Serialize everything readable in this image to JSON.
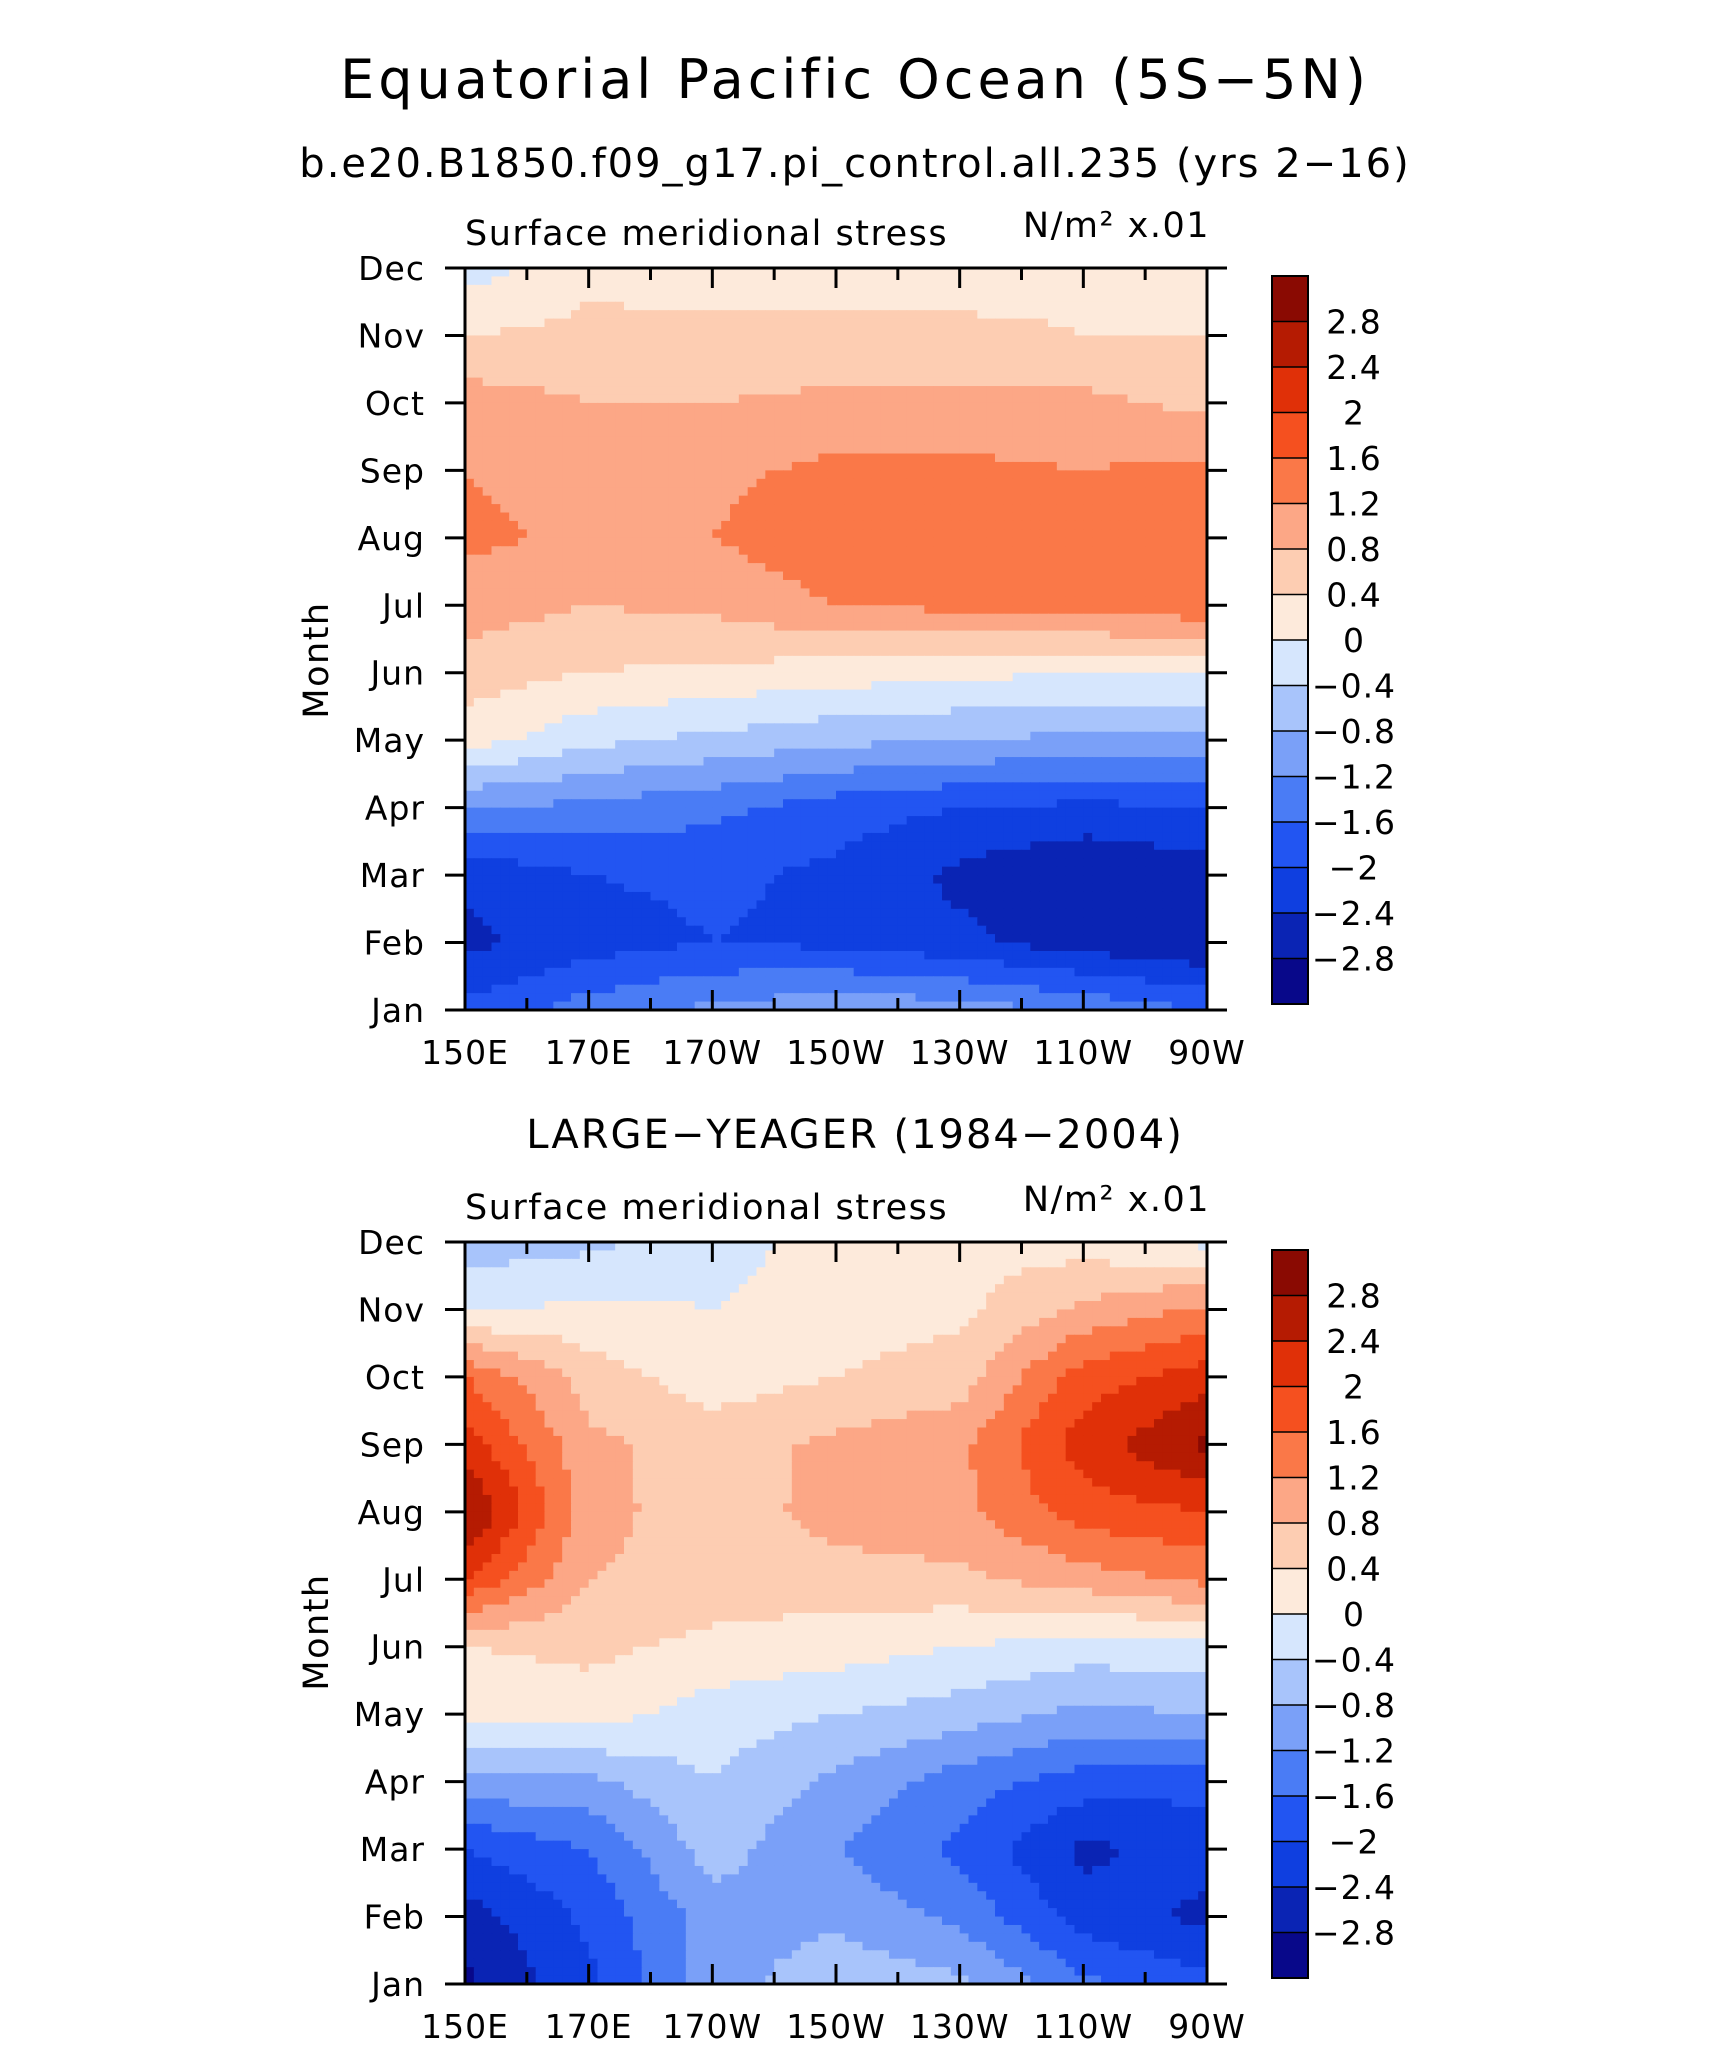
{
  "figure": {
    "title": "Equatorial Pacific Ocean (5S−5N)"
  },
  "palette": [
    "#08088a",
    "#0a24b4",
    "#0f3fe0",
    "#2255f2",
    "#4a7cf5",
    "#7aa0f8",
    "#a8c4fb",
    "#d6e6fd",
    "#fdeadb",
    "#fdcdb2",
    "#fca786",
    "#fa7848",
    "#f5501f",
    "#e03008",
    "#b51b02",
    "#8a0a02"
  ],
  "chart_data": [
    {
      "type": "heatmap",
      "subtitle": "b.e20.B1850.f09_g17.pi_control.all.235 (yrs 2−16)",
      "left_label": "Surface meridional stress",
      "right_label": "N/m² x.01",
      "ylabel": "Month",
      "xlabel": "",
      "x": [
        "150E",
        "170E",
        "170W",
        "150W",
        "130W",
        "110W",
        "90W"
      ],
      "y": [
        "Jan",
        "Feb",
        "Mar",
        "Apr",
        "May",
        "Jun",
        "Jul",
        "Aug",
        "Sep",
        "Oct",
        "Nov",
        "Dec"
      ],
      "colorbar_levels": [
        "2.8",
        "2.4",
        "2",
        "1.6",
        "1.2",
        "0.8",
        "0.4",
        "0",
        "−0.4",
        "−0.8",
        "−1.2",
        "−1.6",
        "−2",
        "−2.4",
        "−2.8"
      ],
      "values": [
        [
          -1.9,
          -1.4,
          -1.1,
          -0.9,
          -1.0,
          -1.3,
          -1.6
        ],
        [
          -2.5,
          -2.2,
          -2.0,
          -2.1,
          -2.3,
          -2.6,
          -2.8
        ],
        [
          -2.3,
          -2.0,
          -1.9,
          -2.1,
          -2.5,
          -2.8,
          -2.6
        ],
        [
          -1.2,
          -1.3,
          -1.5,
          -1.8,
          -2.0,
          -2.1,
          -2.0
        ],
        [
          0.2,
          -0.3,
          -0.5,
          -0.7,
          -0.8,
          -0.9,
          -0.9
        ],
        [
          0.6,
          0.4,
          0.3,
          0.2,
          0.1,
          0.0,
          0.0
        ],
        [
          1.0,
          0.8,
          0.9,
          1.2,
          1.3,
          1.4,
          1.5
        ],
        [
          1.3,
          1.1,
          1.2,
          1.5,
          1.4,
          1.4,
          1.4
        ],
        [
          1.2,
          1.0,
          1.1,
          1.3,
          1.3,
          1.2,
          1.3
        ],
        [
          1.0,
          0.8,
          0.8,
          0.9,
          0.9,
          0.9,
          0.7
        ],
        [
          0.4,
          0.5,
          0.5,
          0.5,
          0.5,
          0.4,
          0.4
        ],
        [
          -0.2,
          0.3,
          0.2,
          0.2,
          0.2,
          0.3,
          0.2
        ]
      ]
    },
    {
      "type": "heatmap",
      "subtitle": "LARGE−YEAGER (1984−2004)",
      "left_label": "Surface meridional stress",
      "right_label": "N/m² x.01",
      "ylabel": "Month",
      "xlabel": "",
      "x": [
        "150E",
        "170E",
        "170W",
        "150W",
        "130W",
        "110W",
        "90W"
      ],
      "y": [
        "Jan",
        "Feb",
        "Mar",
        "Apr",
        "May",
        "Jun",
        "Jul",
        "Aug",
        "Sep",
        "Oct",
        "Nov",
        "Dec"
      ],
      "colorbar_levels": [
        "2.8",
        "2.4",
        "2",
        "1.6",
        "1.2",
        "0.8",
        "0.4",
        "0",
        "−0.4",
        "−0.8",
        "−1.2",
        "−1.6",
        "−2",
        "−2.4",
        "−2.8"
      ],
      "values": [
        [
          -2.9,
          -2.1,
          -1.0,
          -0.5,
          -0.7,
          -1.5,
          -1.9
        ],
        [
          -2.6,
          -1.9,
          -1.0,
          -0.9,
          -1.3,
          -2.2,
          -2.5
        ],
        [
          -2.0,
          -1.6,
          -0.6,
          -1.2,
          -1.7,
          -2.5,
          -2.2
        ],
        [
          -0.9,
          -0.9,
          -0.4,
          -0.9,
          -1.4,
          -1.8,
          -1.9
        ],
        [
          0.1,
          0.2,
          -0.2,
          -0.4,
          -0.6,
          -0.9,
          -0.8
        ],
        [
          0.4,
          0.5,
          0.3,
          0.2,
          0.0,
          -0.2,
          -0.1
        ],
        [
          2.0,
          0.8,
          0.6,
          0.6,
          0.7,
          1.0,
          1.3
        ],
        [
          2.9,
          1.0,
          0.5,
          1.0,
          1.1,
          1.8,
          2.0
        ],
        [
          2.2,
          0.9,
          0.6,
          0.9,
          1.1,
          2.2,
          2.9
        ],
        [
          1.6,
          0.6,
          0.2,
          0.4,
          0.6,
          1.8,
          2.2
        ],
        [
          -0.1,
          0.1,
          0.0,
          0.2,
          0.3,
          0.9,
          1.3
        ],
        [
          -0.6,
          -0.5,
          -0.2,
          0.2,
          0.3,
          0.2,
          -0.1
        ]
      ]
    }
  ]
}
